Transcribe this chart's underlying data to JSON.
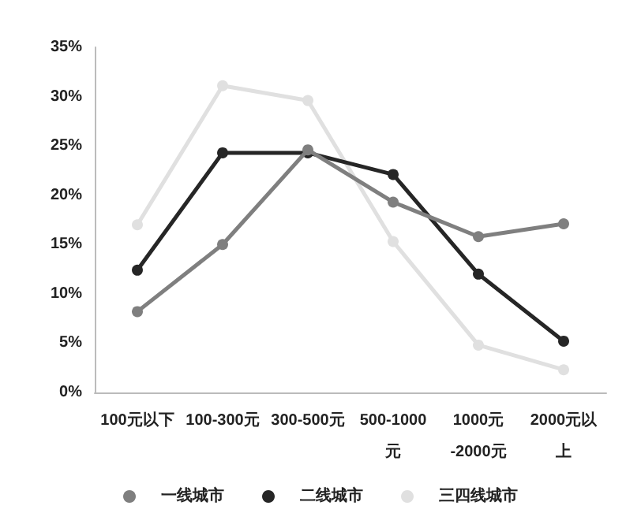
{
  "chart_data": {
    "type": "line",
    "categories": [
      "100元以下",
      "100-300元",
      "300-500元",
      "500-1000元",
      "1000元-2000元",
      "2000元以上"
    ],
    "series": [
      {
        "name": "一线城市",
        "color": "#7f7f7f",
        "values": [
          8.2,
          15.0,
          24.6,
          19.3,
          15.8,
          17.1
        ]
      },
      {
        "name": "二线城市",
        "color": "#262626",
        "values": [
          12.4,
          24.3,
          24.3,
          22.1,
          12.0,
          5.2
        ]
      },
      {
        "name": "三四线城市",
        "color": "#e0e0e0",
        "values": [
          17.0,
          31.1,
          29.6,
          15.3,
          4.8,
          2.3
        ]
      }
    ],
    "ylim": [
      0,
      35
    ],
    "yticks": [
      {
        "value": 0,
        "label": "0%"
      },
      {
        "value": 5,
        "label": "5%"
      },
      {
        "value": 10,
        "label": "10%"
      },
      {
        "value": 15,
        "label": "15%"
      },
      {
        "value": 20,
        "label": "20%"
      },
      {
        "value": 25,
        "label": "25%"
      },
      {
        "value": 30,
        "label": "30%"
      },
      {
        "value": 35,
        "label": "35%"
      }
    ],
    "grid": false,
    "legend": "bottom",
    "marker": "circle",
    "line_style": "solid"
  }
}
